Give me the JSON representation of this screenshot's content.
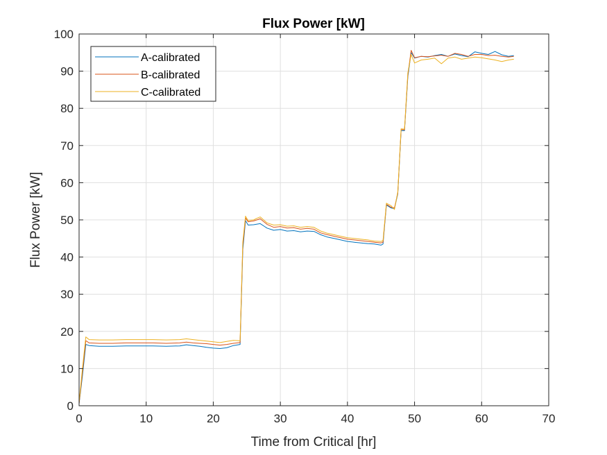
{
  "chart_data": {
    "type": "line",
    "title": "Flux Power [kW]",
    "xlabel": "Time from Critical [hr]",
    "ylabel": "Flux Power [kW]",
    "xlim": [
      0,
      70
    ],
    "ylim": [
      0,
      100
    ],
    "xticks": [
      "0",
      "10",
      "20",
      "30",
      "40",
      "50",
      "60",
      "70"
    ],
    "yticks": [
      "0",
      "10",
      "20",
      "30",
      "40",
      "50",
      "60",
      "70",
      "80",
      "90",
      "100"
    ],
    "grid": true,
    "legend_position": "top-left",
    "series": [
      {
        "name": "A-calibrated",
        "color": "#0072BD",
        "x": [
          0,
          0.5,
          1.0,
          1.5,
          3,
          5,
          7,
          9,
          11,
          13,
          15,
          16,
          17,
          18,
          19,
          20,
          21,
          22,
          23,
          24,
          24.4,
          24.8,
          25.2,
          26,
          27,
          28,
          29,
          30,
          31,
          32,
          33,
          34,
          35,
          36,
          37,
          38,
          39,
          40,
          41,
          42,
          43,
          44,
          45,
          45.3,
          45.8,
          46.5,
          47.0,
          47.5,
          48.0,
          48.5,
          49.0,
          49.5,
          50,
          51,
          52,
          53,
          54,
          55,
          56,
          57,
          58,
          59,
          60,
          61,
          62,
          63,
          64,
          64.8
        ],
        "values": [
          0.5,
          8,
          16.5,
          16.2,
          16.0,
          16.0,
          16.1,
          16.1,
          16.1,
          16.0,
          16.1,
          16.4,
          16.2,
          16.0,
          15.7,
          15.5,
          15.4,
          15.6,
          16.2,
          16.5,
          42,
          49.8,
          48.6,
          48.7,
          49.0,
          47.8,
          47.2,
          47.4,
          47.0,
          47.1,
          46.8,
          47.0,
          46.9,
          46.0,
          45.4,
          45.0,
          44.6,
          44.2,
          44.0,
          43.8,
          43.6,
          43.5,
          43.2,
          43.5,
          54.0,
          53.2,
          53.0,
          57.0,
          74.0,
          74.0,
          88.5,
          95.0,
          93.5,
          94.0,
          93.8,
          94.2,
          94.5,
          94.0,
          94.6,
          94.2,
          93.9,
          95.2,
          94.8,
          94.5,
          95.3,
          94.4,
          94.0,
          94.2
        ]
      },
      {
        "name": "B-calibrated",
        "color": "#D95319",
        "x": [
          0,
          0.5,
          1.0,
          1.5,
          3,
          5,
          7,
          9,
          11,
          13,
          15,
          16,
          17,
          18,
          19,
          20,
          21,
          22,
          23,
          24,
          24.4,
          24.8,
          25.2,
          26,
          27,
          28,
          29,
          30,
          31,
          32,
          33,
          34,
          35,
          36,
          37,
          38,
          39,
          40,
          41,
          42,
          43,
          44,
          45,
          45.3,
          45.8,
          46.5,
          47.0,
          47.5,
          48.0,
          48.5,
          49.0,
          49.5,
          50,
          51,
          52,
          53,
          54,
          55,
          56,
          57,
          58,
          59,
          60,
          61,
          62,
          63,
          64,
          64.8
        ],
        "values": [
          0.6,
          9,
          17.5,
          16.9,
          16.8,
          16.8,
          16.9,
          16.9,
          16.9,
          16.8,
          16.9,
          17.1,
          16.9,
          16.8,
          16.7,
          16.5,
          16.3,
          16.5,
          16.8,
          17.0,
          43,
          50.5,
          49.5,
          49.7,
          50.3,
          48.8,
          48.0,
          48.2,
          47.8,
          47.9,
          47.5,
          47.7,
          47.5,
          46.5,
          46.0,
          45.6,
          45.2,
          44.8,
          44.6,
          44.4,
          44.2,
          44.0,
          43.8,
          44.0,
          54.2,
          53.4,
          53.2,
          57.2,
          74.3,
          74.2,
          89.0,
          95.6,
          93.6,
          94.0,
          93.9,
          94.1,
          94.3,
          94.0,
          94.8,
          94.5,
          94.0,
          94.5,
          94.5,
          94.2,
          94.3,
          94.0,
          93.8,
          94.0
        ]
      },
      {
        "name": "C-calibrated",
        "color": "#EDB120",
        "x": [
          0,
          0.5,
          1.0,
          1.5,
          3,
          5,
          7,
          9,
          11,
          13,
          15,
          16,
          17,
          18,
          19,
          20,
          21,
          22,
          23,
          24,
          24.4,
          24.8,
          25.2,
          26,
          27,
          28,
          29,
          30,
          31,
          32,
          33,
          34,
          35,
          36,
          37,
          38,
          39,
          40,
          41,
          42,
          43,
          44,
          45,
          45.3,
          45.8,
          46.5,
          47.0,
          47.5,
          48.0,
          48.5,
          49.0,
          49.5,
          50,
          51,
          52,
          53,
          54,
          55,
          56,
          57,
          58,
          59,
          60,
          61,
          62,
          63,
          64,
          64.8
        ],
        "values": [
          0.8,
          10,
          18.5,
          17.8,
          17.7,
          17.7,
          17.8,
          17.8,
          17.8,
          17.7,
          17.8,
          18.0,
          17.8,
          17.6,
          17.4,
          17.2,
          17.0,
          17.3,
          17.6,
          17.5,
          44,
          51.0,
          49.8,
          50.0,
          50.8,
          49.2,
          48.6,
          48.7,
          48.3,
          48.4,
          48.0,
          48.2,
          48.0,
          47.0,
          46.4,
          46.0,
          45.6,
          45.2,
          45.0,
          44.8,
          44.6,
          44.3,
          44.2,
          44.4,
          54.5,
          53.8,
          52.8,
          57.5,
          74.5,
          74.4,
          89.5,
          94.5,
          92.2,
          93.0,
          93.2,
          93.5,
          92.0,
          93.5,
          93.8,
          93.2,
          93.5,
          93.8,
          93.6,
          93.3,
          93.0,
          92.6,
          93.0,
          93.2
        ]
      }
    ]
  }
}
